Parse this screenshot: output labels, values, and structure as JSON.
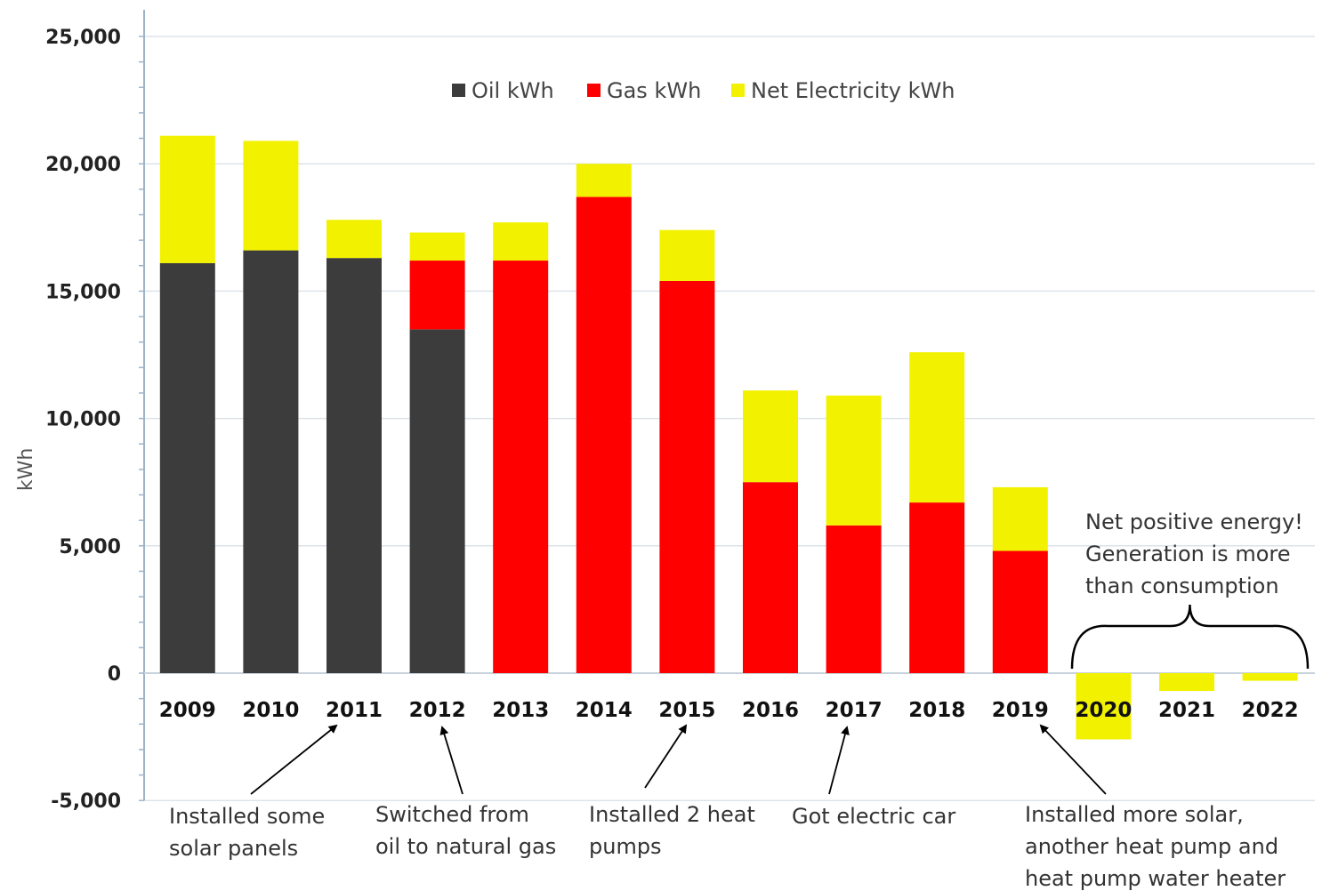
{
  "chart_data": {
    "type": "bar",
    "stacked": true,
    "ylabel": "kWh",
    "xlabel": "",
    "ylim": [
      -5000,
      25000
    ],
    "yticks": [
      -5000,
      0,
      5000,
      10000,
      15000,
      20000,
      25000
    ],
    "ytick_labels": [
      "-5,000",
      "0",
      "5,000",
      "10,000",
      "15,000",
      "20,000",
      "25,000"
    ],
    "grid": true,
    "legend_position": "top-center",
    "categories": [
      "2009",
      "2010",
      "2011",
      "2012",
      "2013",
      "2014",
      "2015",
      "2016",
      "2017",
      "2018",
      "2019",
      "2020",
      "2021",
      "2022"
    ],
    "highlight_category": "2020",
    "highlight_color": "#e8e800",
    "series": [
      {
        "name": "Oil kWh",
        "color": "#3c3c3c",
        "values": [
          16100,
          16600,
          16300,
          13500,
          0,
          0,
          0,
          0,
          0,
          0,
          0,
          0,
          0,
          0
        ]
      },
      {
        "name": "Gas kWh",
        "color": "#ff0000",
        "values": [
          0,
          0,
          0,
          2700,
          16200,
          18700,
          15400,
          7500,
          5800,
          6700,
          4800,
          0,
          0,
          0
        ]
      },
      {
        "name": "Net Electricity kWh",
        "color": "#f2f200",
        "values": [
          5000,
          4300,
          1500,
          1100,
          1500,
          1300,
          2000,
          3600,
          5100,
          5900,
          2500,
          -2600,
          -700,
          -300
        ]
      }
    ],
    "annotations": [
      {
        "lines": [
          "Installed some",
          "solar panels"
        ],
        "target": "2011"
      },
      {
        "lines": [
          "Switched from",
          "oil to natural gas"
        ],
        "target": "2012"
      },
      {
        "lines": [
          "Installed 2 heat",
          "pumps"
        ],
        "target": "2015"
      },
      {
        "lines": [
          "Got electric car"
        ],
        "target": "2017"
      },
      {
        "lines": [
          "Installed more solar,",
          "another heat pump and",
          "heat pump water heater"
        ],
        "target": "2019"
      },
      {
        "lines": [
          "Net positive energy!",
          "Generation is more",
          "than consumption"
        ],
        "target_range": [
          "2020",
          "2022"
        ]
      }
    ]
  }
}
